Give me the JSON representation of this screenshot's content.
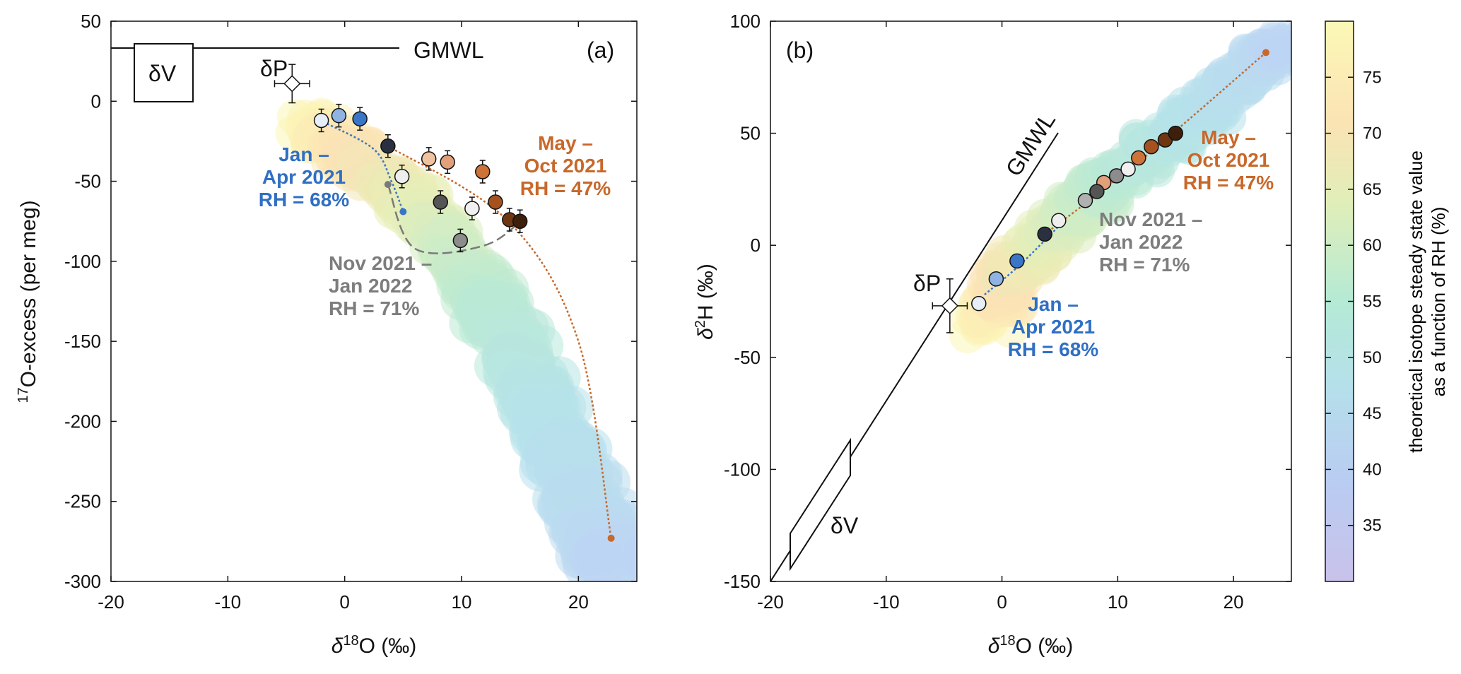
{
  "colors": {
    "jan_apr": "#3a76c8",
    "may_oct": "#c8682a",
    "nov_jan": "#7a7a7a",
    "text_blue": "#2f6fc4",
    "text_orange": "#c8682a",
    "text_gray": "#7d7d7d"
  },
  "chart_data": [
    {
      "type": "scatter",
      "panel_label": "(a)",
      "xlabel": "δ18O (‰)",
      "ylabel": "17O-excess (per meg)",
      "xlim": [
        -20,
        25
      ],
      "ylim": [
        -300,
        50
      ],
      "xticks": [
        "-20",
        "-10",
        "0",
        "10",
        "20"
      ],
      "yticks": [
        "50",
        "0",
        "-50",
        "-100",
        "-150",
        "-200",
        "-250",
        "-300"
      ],
      "gmwl_label": "GMWL",
      "gmwl_y": 33,
      "delta_v_label": "δV",
      "delta_p_label": "δP",
      "delta_p": {
        "x": -4.5,
        "y": 11,
        "xerr": 1.5,
        "yerr": 12
      },
      "group_labels": {
        "jan_apr": [
          "Jan –",
          "Apr 2021",
          "RH = 68%"
        ],
        "may_oct": [
          "May –",
          "Oct 2021",
          "RH = 47%"
        ],
        "nov_jan": [
          "Nov 2021 –",
          "Jan 2022",
          "RH = 71%"
        ]
      },
      "series": [
        {
          "name": "Jan – Apr 2021",
          "points": [
            {
              "x": -2.0,
              "y": -12
            },
            {
              "x": -0.5,
              "y": -9
            },
            {
              "x": 1.3,
              "y": -11
            }
          ],
          "fills": [
            "#e6eef8",
            "#8fb3e2",
            "#3a76c8"
          ]
        },
        {
          "name": "May – Oct 2021",
          "points": [
            {
              "x": 7.2,
              "y": -36
            },
            {
              "x": 8.8,
              "y": -38
            },
            {
              "x": 11.8,
              "y": -44
            },
            {
              "x": 12.9,
              "y": -63
            },
            {
              "x": 14.1,
              "y": -74
            },
            {
              "x": 15.0,
              "y": -75
            }
          ],
          "fills": [
            "#f0c3a0",
            "#e2a07a",
            "#cd7238",
            "#a5521e",
            "#6e3712",
            "#3e1f0b"
          ]
        },
        {
          "name": "Nov 2021 – Jan 2022",
          "points": [
            {
              "x": 3.7,
              "y": -28
            },
            {
              "x": 4.9,
              "y": -47
            },
            {
              "x": 8.2,
              "y": -63
            },
            {
              "x": 9.9,
              "y": -87
            },
            {
              "x": 10.9,
              "y": -67
            }
          ],
          "fills": [
            "#2a3040",
            "#eeeeee",
            "#555555",
            "#8c8c8c",
            "#f0f0f0"
          ]
        }
      ],
      "model_curves": {
        "jan_apr": [
          {
            "x": -1.5,
            "y": -14
          },
          {
            "x": 2.5,
            "y": -30
          },
          {
            "x": 4.0,
            "y": -50
          },
          {
            "x": 5.0,
            "y": -69
          }
        ],
        "may_oct": [
          {
            "x": 3.7,
            "y": -28
          },
          {
            "x": 14.0,
            "y": -75
          },
          {
            "x": 20.0,
            "y": -150
          },
          {
            "x": 22.8,
            "y": -273
          }
        ],
        "nov_jan": [
          {
            "x": 3.7,
            "y": -52
          },
          {
            "x": 6.0,
            "y": -92
          },
          {
            "x": 12.0,
            "y": -90
          },
          {
            "x": 15.5,
            "y": -72
          }
        ]
      }
    },
    {
      "type": "scatter",
      "panel_label": "(b)",
      "xlabel": "δ18O (‰)",
      "ylabel": "δ2H (‰)",
      "xlim": [
        -20,
        25
      ],
      "ylim": [
        -150,
        100
      ],
      "xticks": [
        "-20",
        "-10",
        "0",
        "10",
        "20"
      ],
      "yticks": [
        "100",
        "50",
        "0",
        "-50",
        "-100",
        "-150"
      ],
      "gmwl_label": "GMWL",
      "delta_v_label": "δV",
      "delta_p_label": "δP",
      "delta_p": {
        "x": -4.5,
        "y": -27,
        "xerr": 1.5,
        "yerr": 12
      },
      "group_labels": {
        "jan_apr": [
          "Jan –",
          "Apr 2021",
          "RH = 68%"
        ],
        "may_oct": [
          "May –",
          "Oct 2021",
          "RH = 47%"
        ],
        "nov_jan": [
          "Nov 2021 –",
          "Jan 2022",
          "RH = 71%"
        ]
      },
      "series": [
        {
          "name": "Jan – Apr 2021",
          "points": [
            {
              "x": -2.0,
              "y": -26
            },
            {
              "x": -0.5,
              "y": -15
            },
            {
              "x": 1.3,
              "y": -7
            }
          ],
          "fills": [
            "#e6eef8",
            "#8fb3e2",
            "#3a76c8"
          ]
        },
        {
          "name": "May – Oct 2021",
          "points": [
            {
              "x": 8.8,
              "y": 28
            },
            {
              "x": 11.8,
              "y": 39
            },
            {
              "x": 12.9,
              "y": 44
            },
            {
              "x": 14.1,
              "y": 47
            },
            {
              "x": 15.0,
              "y": 50
            }
          ],
          "fills": [
            "#e2a07a",
            "#cd7238",
            "#a5521e",
            "#6e3712",
            "#3e1f0b"
          ]
        },
        {
          "name": "Nov 2021 – Jan 2022",
          "points": [
            {
              "x": 3.7,
              "y": 5
            },
            {
              "x": 4.9,
              "y": 11
            },
            {
              "x": 7.2,
              "y": 20
            },
            {
              "x": 8.2,
              "y": 24
            },
            {
              "x": 9.9,
              "y": 31
            },
            {
              "x": 10.9,
              "y": 34
            }
          ],
          "fills": [
            "#2a3040",
            "#eeeeee",
            "#b0b0b0",
            "#555555",
            "#8c8c8c",
            "#f0f0f0"
          ]
        }
      ],
      "model_curves": {
        "jan_apr": [
          {
            "x": -1.5,
            "y": -22
          },
          {
            "x": 1.5,
            "y": -9
          },
          {
            "x": 5.0,
            "y": 9
          }
        ],
        "may_oct": [
          {
            "x": 3.7,
            "y": 5
          },
          {
            "x": 12.0,
            "y": 38
          },
          {
            "x": 22.8,
            "y": 86
          }
        ]
      }
    }
  ],
  "colorbar": {
    "label_line1": "theoretical isotope steady state value",
    "label_line2": "as a function of RH (%)",
    "range": [
      30,
      80
    ],
    "ticks": [
      "35",
      "40",
      "45",
      "50",
      "55",
      "60",
      "65",
      "70",
      "75"
    ]
  }
}
